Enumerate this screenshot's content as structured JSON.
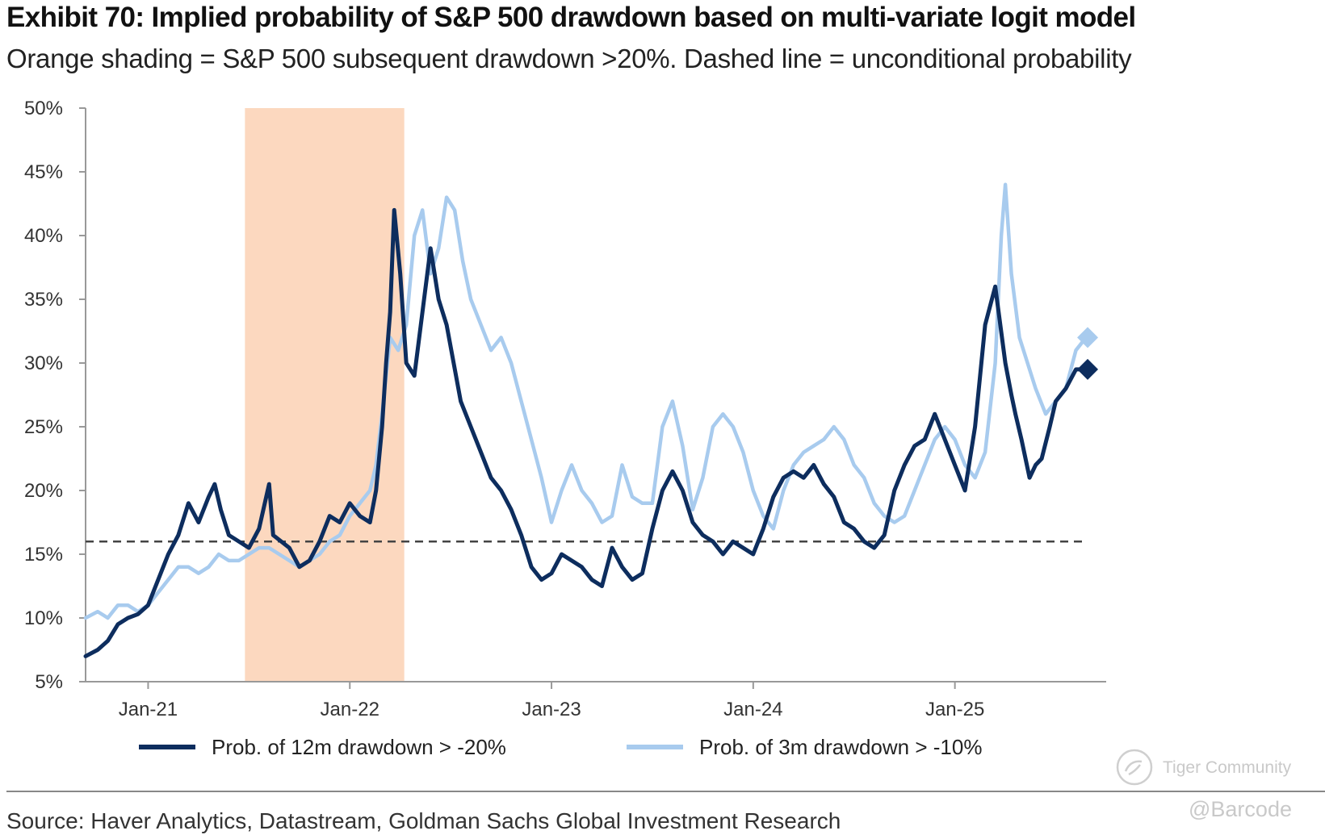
{
  "header": {
    "title": "Exhibit 70: Implied probability of S&P 500 drawdown based on multi-variate logit model",
    "subtitle": "Orange shading = S&P 500 subsequent drawdown >20%. Dashed line = unconditional probability"
  },
  "footer": {
    "source": "Source: Haver Analytics, Datastream, Goldman Sachs Global Investment Research"
  },
  "watermark": {
    "brand": "Tiger Community",
    "handle": "@Barcode"
  },
  "colors": {
    "dark_series": "#0d2d5e",
    "light_series": "#a8cbee",
    "shading": "#fcd8bf",
    "dashed": "#444444",
    "axis": "#999999"
  },
  "chart_data": {
    "type": "line",
    "title": "Implied probability of S&P 500 drawdown based on multi-variate logit model",
    "xlabel": "",
    "ylabel": "",
    "ylim": [
      5,
      50
    ],
    "xlim": [
      2020.69,
      2025.75
    ],
    "y_ticks": [
      "5%",
      "10%",
      "15%",
      "20%",
      "25%",
      "30%",
      "35%",
      "40%",
      "45%",
      "50%"
    ],
    "y_tick_values": [
      5,
      10,
      15,
      20,
      25,
      30,
      35,
      40,
      45,
      50
    ],
    "x_ticks": [
      "Jan-21",
      "Jan-22",
      "Jan-23",
      "Jan-24",
      "Jan-25"
    ],
    "x_tick_values": [
      2021.0,
      2022.0,
      2023.0,
      2024.0,
      2025.0
    ],
    "shaded_region": {
      "x_start": 2021.48,
      "x_end": 2022.27,
      "label": "S&P 500 subsequent drawdown >20%"
    },
    "reference_line": {
      "y": 16,
      "label": "unconditional probability"
    },
    "legend": [
      "Prob. of 12m drawdown > -20%",
      "Prob. of 3m drawdown > -10%"
    ],
    "series": [
      {
        "name": "Prob. of 12m drawdown > -20%",
        "end_marker": "diamond",
        "x": [
          2020.69,
          2020.75,
          2020.8,
          2020.85,
          2020.9,
          2020.95,
          2021.0,
          2021.05,
          2021.1,
          2021.15,
          2021.2,
          2021.25,
          2021.3,
          2021.33,
          2021.36,
          2021.4,
          2021.45,
          2021.5,
          2021.55,
          2021.6,
          2021.62,
          2021.66,
          2021.7,
          2021.75,
          2021.8,
          2021.85,
          2021.9,
          2021.95,
          2022.0,
          2022.05,
          2022.1,
          2022.13,
          2022.16,
          2022.18,
          2022.2,
          2022.22,
          2022.25,
          2022.28,
          2022.32,
          2022.36,
          2022.4,
          2022.44,
          2022.48,
          2022.55,
          2022.6,
          2022.65,
          2022.7,
          2022.75,
          2022.8,
          2022.85,
          2022.9,
          2022.95,
          2023.0,
          2023.05,
          2023.1,
          2023.15,
          2023.2,
          2023.25,
          2023.3,
          2023.35,
          2023.4,
          2023.45,
          2023.5,
          2023.55,
          2023.6,
          2023.65,
          2023.7,
          2023.75,
          2023.8,
          2023.85,
          2023.9,
          2023.95,
          2024.0,
          2024.05,
          2024.1,
          2024.15,
          2024.2,
          2024.25,
          2024.3,
          2024.35,
          2024.4,
          2024.45,
          2024.5,
          2024.55,
          2024.6,
          2024.65,
          2024.7,
          2024.75,
          2024.8,
          2024.85,
          2024.9,
          2024.95,
          2025.0,
          2025.05,
          2025.1,
          2025.15,
          2025.2,
          2025.25,
          2025.28,
          2025.3,
          2025.33,
          2025.37,
          2025.4,
          2025.43,
          2025.47,
          2025.5,
          2025.55,
          2025.6,
          2025.65
        ],
        "values": [
          7,
          7.5,
          8.2,
          9.5,
          10,
          10.3,
          11,
          13,
          15,
          16.5,
          19,
          17.5,
          19.5,
          20.5,
          18.5,
          16.5,
          16,
          15.5,
          17,
          20.5,
          16.5,
          16,
          15.5,
          14,
          14.5,
          16,
          18,
          17.5,
          19,
          18,
          17.5,
          20,
          25,
          30,
          34,
          42,
          37,
          30,
          29,
          34,
          39,
          35,
          33,
          27,
          25,
          23,
          21,
          20,
          18.5,
          16.5,
          14,
          13,
          13.5,
          15,
          14.5,
          14,
          13,
          12.5,
          15.5,
          14,
          13,
          13.5,
          17,
          20,
          21.5,
          20,
          17.5,
          16.5,
          16,
          15,
          16,
          15.5,
          15,
          17,
          19.5,
          21,
          21.5,
          21,
          22,
          20.5,
          19.5,
          17.5,
          17,
          16,
          15.5,
          16.5,
          20,
          22,
          23.5,
          24,
          26,
          24,
          22,
          20,
          25,
          33,
          36,
          30,
          27.5,
          26,
          24,
          21,
          22,
          22.5,
          25,
          27,
          28,
          29.5,
          29.5
        ]
      },
      {
        "name": "Prob. of 3m drawdown > -10%",
        "end_marker": "diamond",
        "x": [
          2020.69,
          2020.75,
          2020.8,
          2020.85,
          2020.9,
          2020.95,
          2021.0,
          2021.05,
          2021.1,
          2021.15,
          2021.2,
          2021.25,
          2021.3,
          2021.35,
          2021.4,
          2021.45,
          2021.5,
          2021.55,
          2021.6,
          2021.65,
          2021.7,
          2021.75,
          2021.8,
          2021.85,
          2021.9,
          2021.95,
          2022.0,
          2022.05,
          2022.1,
          2022.13,
          2022.16,
          2022.2,
          2022.24,
          2022.28,
          2022.32,
          2022.36,
          2022.4,
          2022.44,
          2022.48,
          2022.52,
          2022.56,
          2022.6,
          2022.65,
          2022.7,
          2022.75,
          2022.8,
          2022.85,
          2022.9,
          2022.95,
          2023.0,
          2023.05,
          2023.1,
          2023.15,
          2023.2,
          2023.25,
          2023.3,
          2023.35,
          2023.4,
          2023.45,
          2023.5,
          2023.55,
          2023.6,
          2023.65,
          2023.7,
          2023.75,
          2023.8,
          2023.85,
          2023.9,
          2023.95,
          2024.0,
          2024.05,
          2024.1,
          2024.15,
          2024.2,
          2024.25,
          2024.3,
          2024.35,
          2024.4,
          2024.45,
          2024.5,
          2024.55,
          2024.6,
          2024.65,
          2024.7,
          2024.75,
          2024.8,
          2024.85,
          2024.9,
          2024.95,
          2025.0,
          2025.05,
          2025.1,
          2025.15,
          2025.2,
          2025.23,
          2025.25,
          2025.28,
          2025.32,
          2025.36,
          2025.4,
          2025.45,
          2025.5,
          2025.55,
          2025.6,
          2025.65
        ],
        "values": [
          10,
          10.5,
          10,
          11,
          11,
          10.5,
          11,
          12,
          13,
          14,
          14,
          13.5,
          14,
          15,
          14.5,
          14.5,
          15,
          15.5,
          15.5,
          15,
          14.5,
          14,
          14.5,
          15,
          16,
          16.5,
          18,
          19,
          20,
          22,
          26,
          32,
          31,
          33,
          40,
          42,
          37,
          39,
          43,
          42,
          38,
          35,
          33,
          31,
          32,
          30,
          27,
          24,
          21,
          17.5,
          20,
          22,
          20,
          19,
          17.5,
          18,
          22,
          19.5,
          19,
          19,
          25,
          27,
          23.5,
          18.5,
          21,
          25,
          26,
          25,
          23,
          20,
          18,
          17,
          20,
          22,
          23,
          23.5,
          24,
          25,
          24,
          22,
          21,
          19,
          18,
          17.5,
          18,
          20,
          22,
          24,
          25,
          24,
          22,
          21,
          23,
          30,
          40,
          44,
          37,
          32,
          30,
          28,
          26,
          27,
          28,
          31,
          32
        ]
      }
    ]
  }
}
